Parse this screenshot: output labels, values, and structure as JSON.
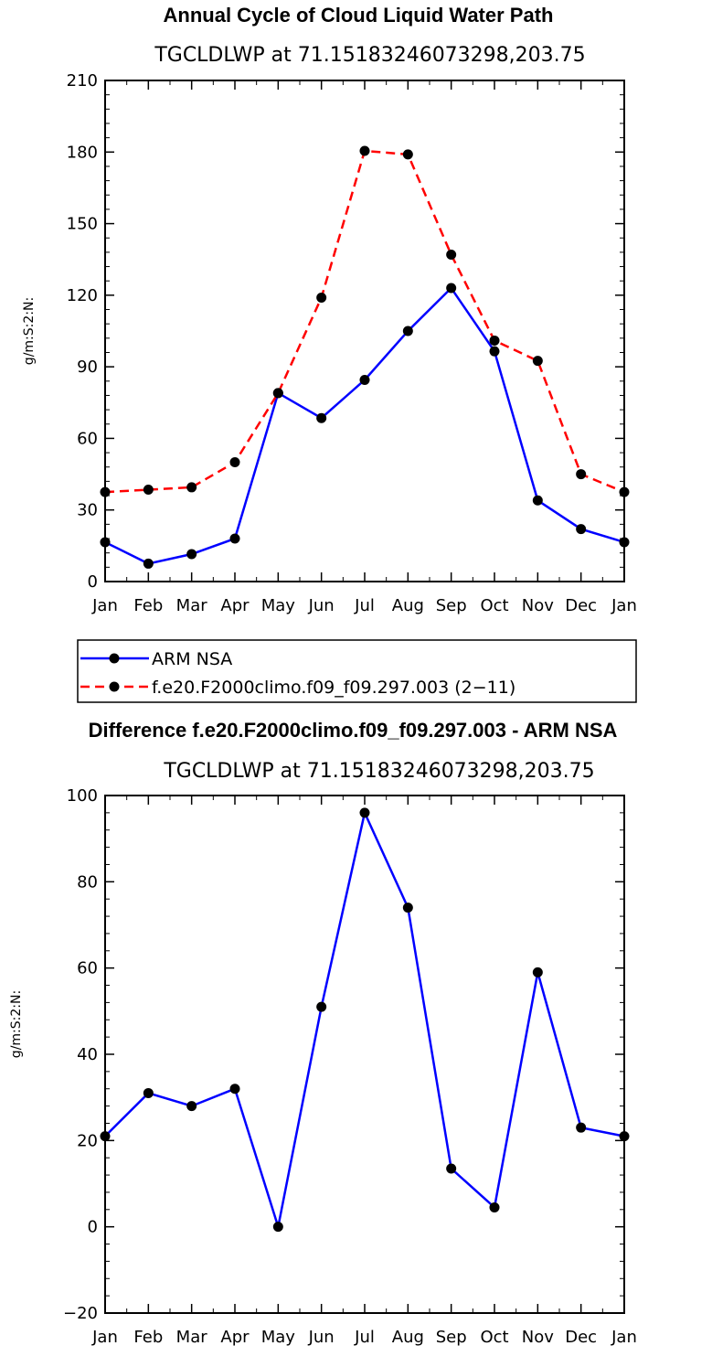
{
  "chart_data": [
    {
      "type": "line",
      "title": "Annual Cycle of Cloud Liquid Water Path",
      "subtitle": "TGCLDLWP  at  71.15183246073298,203.75",
      "xlabel": "",
      "ylabel": "g/m:S:2:N:",
      "ylim": [
        0,
        210
      ],
      "yticks": [
        0,
        30,
        60,
        90,
        120,
        150,
        180,
        210
      ],
      "categories": [
        "Jan",
        "Feb",
        "Mar",
        "Apr",
        "May",
        "Jun",
        "Jul",
        "Aug",
        "Sep",
        "Oct",
        "Nov",
        "Dec",
        "Jan"
      ],
      "grid": false,
      "legend_position": "bottom",
      "series": [
        {
          "name": "ARM  NSA",
          "color": "#0000ff",
          "dash": "solid",
          "values": [
            16.5,
            7.5,
            11.5,
            18,
            79,
            68.5,
            84.5,
            105,
            123,
            96.5,
            34,
            22,
            16.5
          ]
        },
        {
          "name": "f.e20.F2000climo.f09_f09.297.003  (2−11)",
          "color": "#ff0000",
          "dash": "dashed",
          "values": [
            37.5,
            38.5,
            39.5,
            50,
            79,
            119,
            180.5,
            179,
            137,
            101,
            92.5,
            45,
            37.5
          ]
        }
      ]
    },
    {
      "type": "line",
      "title": "Difference f.e20.F2000climo.f09_f09.297.003 - ARM NSA",
      "subtitle": "TGCLDLWP  at  71.15183246073298,203.75",
      "xlabel": "",
      "ylabel": "g/m:S:2:N:",
      "ylim": [
        -20,
        100
      ],
      "yticks": [
        -20,
        0,
        20,
        40,
        60,
        80,
        100
      ],
      "categories": [
        "Jan",
        "Feb",
        "Mar",
        "Apr",
        "May",
        "Jun",
        "Jul",
        "Aug",
        "Sep",
        "Oct",
        "Nov",
        "Dec",
        "Jan"
      ],
      "grid": false,
      "series": [
        {
          "color": "#0000ff",
          "dash": "solid",
          "values": [
            21,
            31,
            28,
            32,
            0,
            51,
            96,
            74,
            13.5,
            4.5,
            59,
            23,
            21
          ]
        }
      ]
    }
  ]
}
